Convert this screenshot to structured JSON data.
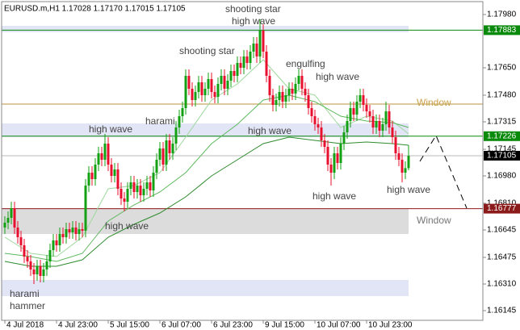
{
  "chart_data": {
    "type": "candlestick",
    "header": "EURUSD.m,H1  1.17028 1.17170 1.17015 1.17105",
    "up_color": "#13a013",
    "down_color": "#e8102e",
    "ylim": [
      1.16085,
      1.1806
    ],
    "xlim": [
      -1,
      148
    ],
    "yticks": [
      {
        "value": 1.1798,
        "label": "1.17980"
      },
      {
        "value": 1.1765,
        "label": "1.17650"
      },
      {
        "value": 1.1748,
        "label": "1.17480"
      },
      1.17315,
      1.17145,
      {
        "value": 1.1698,
        "label": "1.16980"
      },
      {
        "value": 1.1681,
        "label": "1.16810"
      },
      1.16645,
      1.16475,
      {
        "value": 1.1631,
        "label": "1.16310"
      },
      1.16145
    ],
    "xticks": [
      {
        "value": 0,
        "label": "4 Jul 2018"
      },
      {
        "value": 16,
        "label": "4 Jul 23:00"
      },
      {
        "value": 32,
        "label": "5 Jul 15:00"
      },
      {
        "value": 48,
        "label": "6 Jul 07:00"
      },
      {
        "value": 64,
        "label": "6 Jul 23:00"
      },
      {
        "value": 80,
        "label": "9 Jul 15:00"
      },
      {
        "value": 96,
        "label": "10 Jul 07:00"
      },
      {
        "value": 112,
        "label": "10 Jul 23:00"
      }
    ],
    "levels": [
      {
        "value": 1.17883,
        "color": "#0a8a0a"
      },
      {
        "value": 1.17226,
        "color": "#0a8a0a"
      },
      {
        "value": 1.17105,
        "color": "#000000"
      },
      {
        "value": 1.16777,
        "color": "#8b1a1a"
      }
    ],
    "candles": [
      [
        1.1666,
        1.1673,
        1.1662,
        1.1669
      ],
      [
        1.1669,
        1.1676,
        1.1665,
        1.1672
      ],
      [
        1.1672,
        1.1682,
        1.1668,
        1.1678
      ],
      [
        1.1678,
        1.1682,
        1.1662,
        1.1666
      ],
      [
        1.1666,
        1.167,
        1.1656,
        1.166
      ],
      [
        1.166,
        1.1664,
        1.1651,
        1.1655
      ],
      [
        1.1655,
        1.1659,
        1.1644,
        1.1648
      ],
      [
        1.1648,
        1.1652,
        1.1641,
        1.1645
      ],
      [
        1.1645,
        1.1649,
        1.1636,
        1.164
      ],
      [
        1.164,
        1.1644,
        1.1631,
        1.1637
      ],
      [
        1.1637,
        1.1646,
        1.1633,
        1.1642
      ],
      [
        1.1642,
        1.1646,
        1.1632,
        1.1636
      ],
      [
        1.1636,
        1.1644,
        1.1632,
        1.164
      ],
      [
        1.164,
        1.1649,
        1.1636,
        1.1645
      ],
      [
        1.1645,
        1.1656,
        1.1641,
        1.1652
      ],
      [
        1.1652,
        1.1662,
        1.1648,
        1.1658
      ],
      [
        1.1658,
        1.1662,
        1.1651,
        1.1655
      ],
      [
        1.1655,
        1.1666,
        1.1651,
        1.1662
      ],
      [
        1.1662,
        1.1666,
        1.1656,
        1.166
      ],
      [
        1.166,
        1.1669,
        1.1656,
        1.1665
      ],
      [
        1.1665,
        1.1669,
        1.1659,
        1.1663
      ],
      [
        1.1663,
        1.167,
        1.1659,
        1.1666
      ],
      [
        1.1666,
        1.167,
        1.1658,
        1.1662
      ],
      [
        1.1662,
        1.1669,
        1.1658,
        1.1665
      ],
      [
        1.1665,
        1.1669,
        1.166,
        1.1664
      ],
      [
        1.1664,
        1.1696,
        1.166,
        1.1692
      ],
      [
        1.1692,
        1.1704,
        1.1688,
        1.17
      ],
      [
        1.17,
        1.1704,
        1.1692,
        1.1696
      ],
      [
        1.1696,
        1.1709,
        1.1692,
        1.1705
      ],
      [
        1.1705,
        1.1716,
        1.1701,
        1.1712
      ],
      [
        1.1712,
        1.1716,
        1.1704,
        1.1708
      ],
      [
        1.1708,
        1.1724,
        1.1704,
        1.1718
      ],
      [
        1.1718,
        1.1722,
        1.1701,
        1.1705
      ],
      [
        1.1705,
        1.1709,
        1.1694,
        1.1698
      ],
      [
        1.1698,
        1.1706,
        1.1694,
        1.1702
      ],
      [
        1.1702,
        1.1706,
        1.1686,
        1.169
      ],
      [
        1.169,
        1.1694,
        1.168,
        1.1684
      ],
      [
        1.1684,
        1.1688,
        1.1676,
        1.1682
      ],
      [
        1.1682,
        1.1694,
        1.1678,
        1.169
      ],
      [
        1.169,
        1.1698,
        1.1686,
        1.1694
      ],
      [
        1.1694,
        1.1698,
        1.1684,
        1.1688
      ],
      [
        1.1688,
        1.1696,
        1.1684,
        1.1692
      ],
      [
        1.1692,
        1.1696,
        1.1682,
        1.1686
      ],
      [
        1.1686,
        1.1694,
        1.1682,
        1.169
      ],
      [
        1.169,
        1.1698,
        1.1686,
        1.1694
      ],
      [
        1.1694,
        1.1698,
        1.1685,
        1.1689
      ],
      [
        1.1689,
        1.1704,
        1.1685,
        1.17
      ],
      [
        1.17,
        1.1712,
        1.1696,
        1.1708
      ],
      [
        1.1708,
        1.1719,
        1.1704,
        1.1715
      ],
      [
        1.1715,
        1.1719,
        1.1701,
        1.1705
      ],
      [
        1.1705,
        1.1724,
        1.1701,
        1.172
      ],
      [
        1.172,
        1.1724,
        1.1708,
        1.1712
      ],
      [
        1.1712,
        1.1722,
        1.1708,
        1.1718
      ],
      [
        1.1718,
        1.1732,
        1.1714,
        1.1728
      ],
      [
        1.1728,
        1.1739,
        1.1724,
        1.1735
      ],
      [
        1.1735,
        1.1744,
        1.1731,
        1.174
      ],
      [
        1.174,
        1.1764,
        1.1736,
        1.176
      ],
      [
        1.176,
        1.1764,
        1.1748,
        1.1752
      ],
      [
        1.1752,
        1.1756,
        1.1741,
        1.1745
      ],
      [
        1.1745,
        1.1754,
        1.1741,
        1.175
      ],
      [
        1.175,
        1.176,
        1.1746,
        1.1756
      ],
      [
        1.1756,
        1.176,
        1.1744,
        1.1748
      ],
      [
        1.1748,
        1.1756,
        1.1744,
        1.1752
      ],
      [
        1.1752,
        1.1762,
        1.1748,
        1.1758
      ],
      [
        1.1758,
        1.1762,
        1.1746,
        1.175
      ],
      [
        1.175,
        1.1754,
        1.1743,
        1.1747
      ],
      [
        1.1747,
        1.1759,
        1.1743,
        1.1755
      ],
      [
        1.1755,
        1.1764,
        1.1751,
        1.176
      ],
      [
        1.176,
        1.1764,
        1.1748,
        1.1752
      ],
      [
        1.1752,
        1.1761,
        1.1748,
        1.1757
      ],
      [
        1.1757,
        1.1767,
        1.1753,
        1.1763
      ],
      [
        1.1763,
        1.1767,
        1.1756,
        1.176
      ],
      [
        1.176,
        1.1772,
        1.1756,
        1.1768
      ],
      [
        1.1768,
        1.1772,
        1.1761,
        1.1765
      ],
      [
        1.1765,
        1.1776,
        1.1761,
        1.1772
      ],
      [
        1.1772,
        1.1776,
        1.1764,
        1.1768
      ],
      [
        1.1768,
        1.1779,
        1.1764,
        1.1775
      ],
      [
        1.1775,
        1.1784,
        1.1771,
        1.178
      ],
      [
        1.178,
        1.1784,
        1.1768,
        1.1772
      ],
      [
        1.1772,
        1.1795,
        1.1768,
        1.1788
      ],
      [
        1.1788,
        1.1792,
        1.1771,
        1.1775
      ],
      [
        1.1775,
        1.1779,
        1.1756,
        1.176
      ],
      [
        1.176,
        1.1764,
        1.1744,
        1.1748
      ],
      [
        1.1748,
        1.1752,
        1.1738,
        1.1742
      ],
      [
        1.1742,
        1.1749,
        1.1738,
        1.1745
      ],
      [
        1.1745,
        1.1754,
        1.1741,
        1.175
      ],
      [
        1.175,
        1.1754,
        1.174,
        1.1744
      ],
      [
        1.1744,
        1.1752,
        1.174,
        1.1748
      ],
      [
        1.1748,
        1.1756,
        1.1744,
        1.1752
      ],
      [
        1.1752,
        1.1756,
        1.1745,
        1.1749
      ],
      [
        1.1749,
        1.1759,
        1.1745,
        1.1755
      ],
      [
        1.1755,
        1.1764,
        1.1751,
        1.176
      ],
      [
        1.176,
        1.1764,
        1.1748,
        1.1752
      ],
      [
        1.1752,
        1.1756,
        1.1744,
        1.1748
      ],
      [
        1.1748,
        1.1752,
        1.1736,
        1.174
      ],
      [
        1.174,
        1.1744,
        1.1731,
        1.1735
      ],
      [
        1.1735,
        1.1739,
        1.1726,
        1.173
      ],
      [
        1.173,
        1.1734,
        1.1724,
        1.1728
      ],
      [
        1.1728,
        1.1732,
        1.1716,
        1.172
      ],
      [
        1.172,
        1.1724,
        1.1712,
        1.1716
      ],
      [
        1.1716,
        1.172,
        1.1701,
        1.1705
      ],
      [
        1.1705,
        1.1709,
        1.1692,
        1.17
      ],
      [
        1.17,
        1.1716,
        1.1696,
        1.1712
      ],
      [
        1.1712,
        1.1716,
        1.1702,
        1.1706
      ],
      [
        1.1706,
        1.1722,
        1.1702,
        1.1718
      ],
      [
        1.1718,
        1.1729,
        1.1714,
        1.1725
      ],
      [
        1.1725,
        1.1736,
        1.1721,
        1.1732
      ],
      [
        1.1732,
        1.1744,
        1.1728,
        1.174
      ],
      [
        1.174,
        1.1744,
        1.1732,
        1.1736
      ],
      [
        1.1736,
        1.1748,
        1.1732,
        1.1744
      ],
      [
        1.1744,
        1.1752,
        1.174,
        1.1748
      ],
      [
        1.1748,
        1.1752,
        1.1738,
        1.1742
      ],
      [
        1.1742,
        1.1746,
        1.1734,
        1.1738
      ],
      [
        1.1738,
        1.1742,
        1.1731,
        1.1735
      ],
      [
        1.1735,
        1.1739,
        1.1724,
        1.1728
      ],
      [
        1.1728,
        1.1736,
        1.1724,
        1.1732
      ],
      [
        1.1732,
        1.1736,
        1.1722,
        1.1726
      ],
      [
        1.1726,
        1.1734,
        1.1722,
        1.173
      ],
      [
        1.173,
        1.1744,
        1.1726,
        1.1738
      ],
      [
        1.1738,
        1.1742,
        1.1724,
        1.1728
      ],
      [
        1.1728,
        1.1732,
        1.1718,
        1.1722
      ],
      [
        1.1722,
        1.1726,
        1.1708,
        1.1712
      ],
      [
        1.1712,
        1.1716,
        1.1704,
        1.1708
      ],
      [
        1.1708,
        1.1712,
        1.1694,
        1.17
      ],
      [
        1.17,
        1.1707,
        1.1696,
        1.17028
      ],
      [
        1.17028,
        1.1717,
        1.17015,
        1.17105
      ]
    ],
    "averages": [
      {
        "color": "#9ed89e",
        "x": [
          0,
          8,
          16,
          24,
          32,
          40,
          48,
          56,
          64,
          72,
          80,
          88,
          96,
          104,
          112,
          120,
          125
        ],
        "values": [
          1.166,
          1.165,
          1.1648,
          1.166,
          1.169,
          1.1692,
          1.17,
          1.1722,
          1.1745,
          1.1755,
          1.177,
          1.1752,
          1.1748,
          1.1728,
          1.1735,
          1.1732,
          1.1724
        ]
      },
      {
        "color": "#5cb85c",
        "x": [
          0,
          8,
          16,
          24,
          32,
          40,
          48,
          56,
          64,
          72,
          80,
          88,
          96,
          104,
          112,
          120,
          125
        ],
        "values": [
          1.165,
          1.1648,
          1.1645,
          1.165,
          1.167,
          1.168,
          1.1688,
          1.17,
          1.1718,
          1.173,
          1.1745,
          1.1748,
          1.1744,
          1.1735,
          1.1732,
          1.1731,
          1.1728
        ]
      },
      {
        "color": "#2e8b2e",
        "x": [
          0,
          8,
          16,
          24,
          32,
          40,
          48,
          56,
          64,
          72,
          80,
          88,
          96,
          104,
          112,
          120,
          125
        ],
        "values": [
          1.1645,
          1.1642,
          1.1642,
          1.1646,
          1.166,
          1.1668,
          1.1675,
          1.1685,
          1.1698,
          1.1708,
          1.1718,
          1.1722,
          1.172,
          1.1718,
          1.1719,
          1.1718,
          1.1717
        ]
      }
    ],
    "annotations": [
      "shooting star",
      "high wave",
      "shooting star",
      "engulfing",
      "high wave",
      "harami",
      "high wave",
      "high wave",
      "Window",
      "high wave",
      "high wave",
      "high wave",
      "Window",
      "harami",
      "hammer"
    ]
  }
}
